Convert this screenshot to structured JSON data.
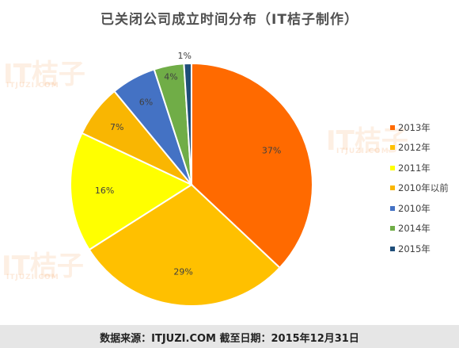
{
  "chart_data": {
    "type": "pie",
    "title": "已关闭公司成立时间分布（IT桔子制作）",
    "slices": [
      {
        "label": "2013年",
        "value": 37,
        "display": "37%",
        "color": "#ff6a00"
      },
      {
        "label": "2012年",
        "value": 29,
        "display": "29%",
        "color": "#ffc000"
      },
      {
        "label": "2011年",
        "value": 16,
        "display": "16%",
        "color": "#ffff00"
      },
      {
        "label": "2010年以前",
        "value": 7,
        "display": "7%",
        "color": "#f9b602"
      },
      {
        "label": "2010年",
        "value": 6,
        "display": "6%",
        "color": "#4472c4"
      },
      {
        "label": "2014年",
        "value": 4,
        "display": "4%",
        "color": "#70ad47"
      },
      {
        "label": "2015年",
        "value": 1,
        "display": "1%",
        "color": "#1f4e79"
      }
    ],
    "legend_position": "right"
  },
  "footer": {
    "text": "数据来源：ITJUZI.COM  截至日期：2015年12月31日"
  },
  "watermark": {
    "brand": "IT桔子",
    "domain": "ITJUZI.COM"
  }
}
